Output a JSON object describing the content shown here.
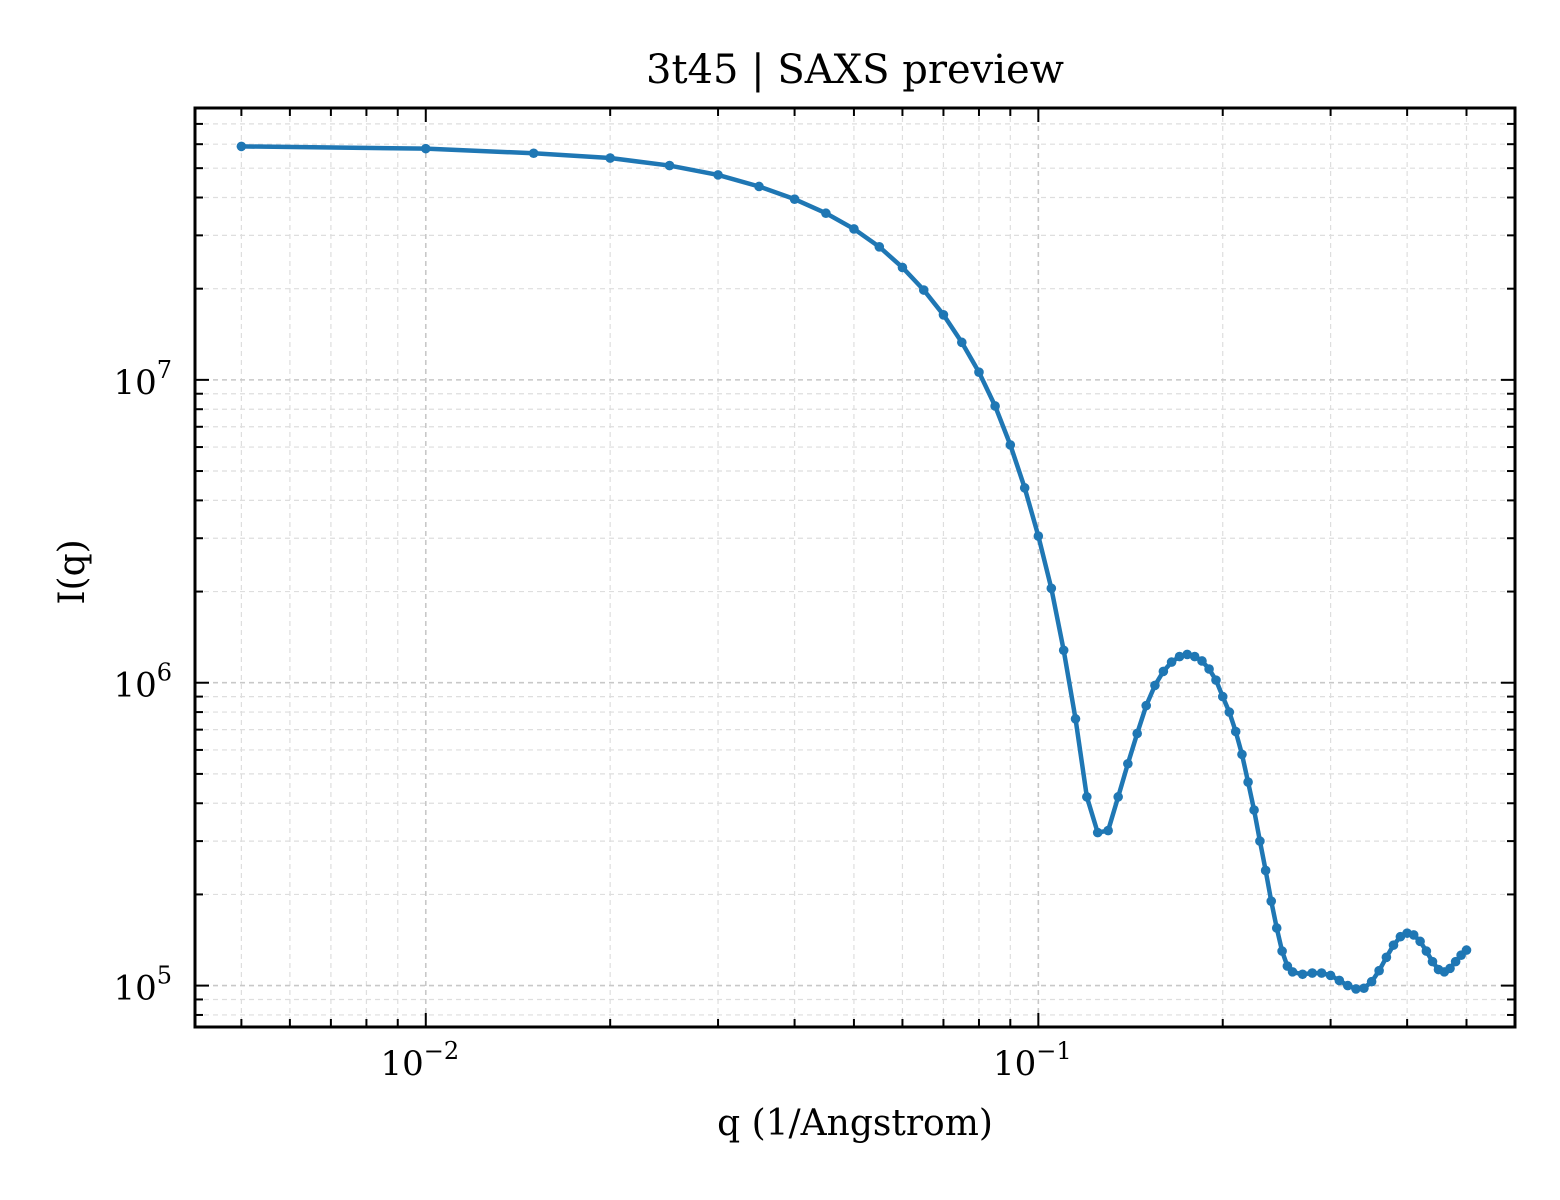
{
  "chart_data": {
    "type": "line",
    "title": "3t45 | SAXS preview",
    "xlabel": "q (1/Angstrom)",
    "ylabel": "I(q)",
    "xscale": "log",
    "yscale": "log",
    "xlim": [
      0.0042,
      0.6
    ],
    "ylim": [
      73000,
      79000000
    ],
    "grid": true,
    "color": "#1f77b4",
    "x_ticks": [
      {
        "value": 0.01,
        "base": "10",
        "exp": "−2"
      },
      {
        "value": 0.1,
        "base": "10",
        "exp": "−1"
      }
    ],
    "y_ticks": [
      {
        "value": 100000,
        "base": "10",
        "exp": "5"
      },
      {
        "value": 1000000,
        "base": "10",
        "exp": "6"
      },
      {
        "value": 10000000,
        "base": "10",
        "exp": "7"
      }
    ],
    "points": [
      [
        0.005,
        59000000
      ],
      [
        0.01,
        58000000
      ],
      [
        0.015,
        56000000
      ],
      [
        0.02,
        54000000
      ],
      [
        0.025,
        51000000
      ],
      [
        0.03,
        47500000
      ],
      [
        0.035,
        43500000
      ],
      [
        0.04,
        39500000
      ],
      [
        0.045,
        35500000
      ],
      [
        0.05,
        31500000
      ],
      [
        0.055,
        27500000
      ],
      [
        0.06,
        23500000
      ],
      [
        0.065,
        19800000
      ],
      [
        0.07,
        16400000
      ],
      [
        0.075,
        13300000
      ],
      [
        0.08,
        10600000
      ],
      [
        0.085,
        8200000
      ],
      [
        0.09,
        6100000
      ],
      [
        0.095,
        4400000
      ],
      [
        0.1,
        3050000
      ],
      [
        0.105,
        2050000
      ],
      [
        0.11,
        1280000
      ],
      [
        0.115,
        760000
      ],
      [
        0.12,
        420000
      ],
      [
        0.125,
        320000
      ],
      [
        0.13,
        325000
      ],
      [
        0.135,
        420000
      ],
      [
        0.14,
        540000
      ],
      [
        0.145,
        680000
      ],
      [
        0.15,
        840000
      ],
      [
        0.155,
        980000
      ],
      [
        0.16,
        1090000
      ],
      [
        0.165,
        1170000
      ],
      [
        0.17,
        1220000
      ],
      [
        0.175,
        1240000
      ],
      [
        0.18,
        1220000
      ],
      [
        0.185,
        1180000
      ],
      [
        0.19,
        1110000
      ],
      [
        0.195,
        1020000
      ],
      [
        0.2,
        900000
      ],
      [
        0.205,
        800000
      ],
      [
        0.21,
        690000
      ],
      [
        0.215,
        580000
      ],
      [
        0.22,
        470000
      ],
      [
        0.225,
        380000
      ],
      [
        0.23,
        300000
      ],
      [
        0.235,
        240000
      ],
      [
        0.24,
        190000
      ],
      [
        0.245,
        155000
      ],
      [
        0.25,
        130000
      ],
      [
        0.255,
        116000
      ],
      [
        0.26,
        111000
      ],
      [
        0.27,
        109000
      ],
      [
        0.28,
        110000
      ],
      [
        0.29,
        110000
      ],
      [
        0.3,
        108000
      ],
      [
        0.31,
        104000
      ],
      [
        0.32,
        100000
      ],
      [
        0.33,
        97500
      ],
      [
        0.34,
        98000
      ],
      [
        0.35,
        103000
      ],
      [
        0.36,
        112000
      ],
      [
        0.37,
        124000
      ],
      [
        0.38,
        136000
      ],
      [
        0.39,
        145000
      ],
      [
        0.4,
        149000
      ],
      [
        0.41,
        147000
      ],
      [
        0.42,
        140000
      ],
      [
        0.43,
        130000
      ],
      [
        0.44,
        120000
      ],
      [
        0.45,
        113000
      ],
      [
        0.46,
        111000
      ],
      [
        0.47,
        114000
      ],
      [
        0.48,
        120000
      ],
      [
        0.49,
        126000
      ],
      [
        0.5,
        131000
      ]
    ]
  }
}
